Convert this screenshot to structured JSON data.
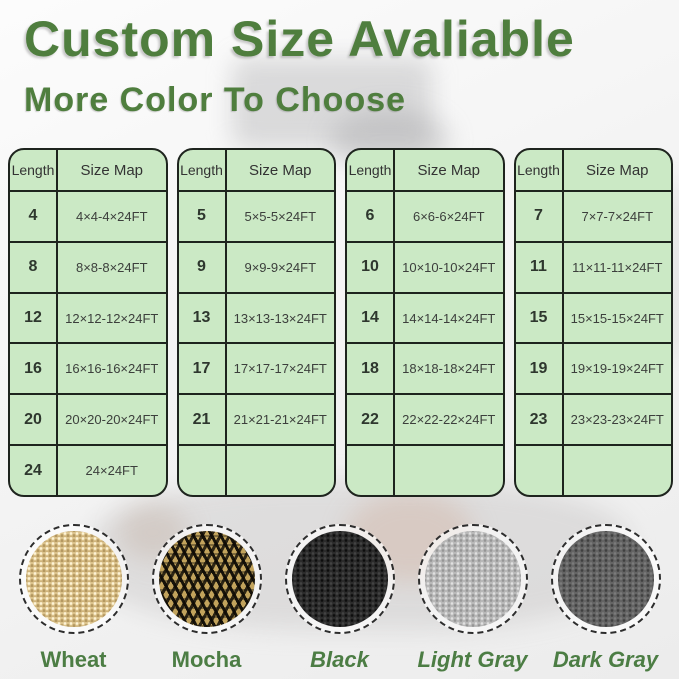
{
  "header": {
    "title": "Custom Size Avaliable",
    "subtitle": "More Color To Choose"
  },
  "colors": {
    "heading_green": "#4f7e3e",
    "label_green": "#4c7d44",
    "table_background": "#cbe9c5",
    "table_border": "#1e241e"
  },
  "tables": [
    {
      "headers": [
        "Length",
        "Size Map"
      ],
      "rows": [
        [
          "4",
          "4×4-4×24FT"
        ],
        [
          "8",
          "8×8-8×24FT"
        ],
        [
          "12",
          "12×12-12×24FT"
        ],
        [
          "16",
          "16×16-16×24FT"
        ],
        [
          "20",
          "20×20-20×24FT"
        ],
        [
          "24",
          "24×24FT"
        ]
      ]
    },
    {
      "headers": [
        "Length",
        "Size Map"
      ],
      "rows": [
        [
          "5",
          "5×5-5×24FT"
        ],
        [
          "9",
          "9×9-9×24FT"
        ],
        [
          "13",
          "13×13-13×24FT"
        ],
        [
          "17",
          "17×17-17×24FT"
        ],
        [
          "21",
          "21×21-21×24FT"
        ],
        [
          "",
          ""
        ]
      ]
    },
    {
      "headers": [
        "Length",
        "Size Map"
      ],
      "rows": [
        [
          "6",
          "6×6-6×24FT"
        ],
        [
          "10",
          "10×10-10×24FT"
        ],
        [
          "14",
          "14×14-14×24FT"
        ],
        [
          "18",
          "18×18-18×24FT"
        ],
        [
          "22",
          "22×22-22×24FT"
        ],
        [
          "",
          ""
        ]
      ]
    },
    {
      "headers": [
        "Length",
        "Size Map"
      ],
      "rows": [
        [
          "7",
          "7×7-7×24FT"
        ],
        [
          "11",
          "11×11-11×24FT"
        ],
        [
          "15",
          "15×15-15×24FT"
        ],
        [
          "19",
          "19×19-19×24FT"
        ],
        [
          "23",
          "23×23-23×24FT"
        ],
        [
          "",
          ""
        ]
      ]
    }
  ],
  "swatches": [
    {
      "label": "Wheat",
      "pattern": "wheat",
      "base_color": "#dbc28b",
      "italic": false
    },
    {
      "label": "Mocha",
      "pattern": "mocha",
      "base_color": "#5a4a28",
      "italic": false
    },
    {
      "label": "Black",
      "pattern": "black",
      "base_color": "#2b2b2b",
      "italic": true
    },
    {
      "label": "Light Gray",
      "pattern": "light-gray",
      "base_color": "#b8b8b8",
      "italic": true
    },
    {
      "label": "Dark Gray",
      "pattern": "dark-gray",
      "base_color": "#646464",
      "italic": true
    }
  ]
}
